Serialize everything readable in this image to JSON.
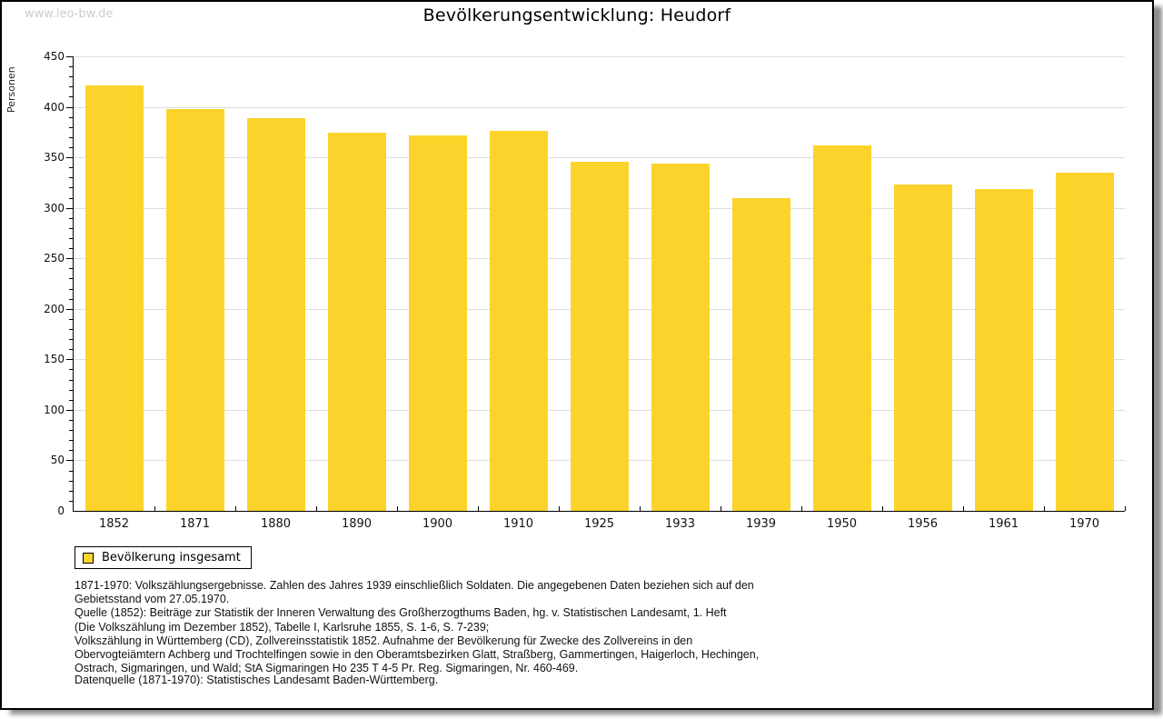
{
  "watermark": "www.leo-bw.de",
  "header": {
    "title": "Bevölkerungsentwicklung: Heudorf"
  },
  "legend": {
    "series_label": "Bevölkerung insgesamt",
    "swatch_color": "#FCD32B"
  },
  "chart_data": {
    "type": "bar",
    "title": "Bevölkerungsentwicklung: Heudorf",
    "xlabel": "",
    "ylabel": "Personen",
    "categories": [
      "1852",
      "1871",
      "1880",
      "1890",
      "1900",
      "1910",
      "1925",
      "1933",
      "1939",
      "1950",
      "1956",
      "1961",
      "1970"
    ],
    "values": [
      421,
      398,
      389,
      374,
      372,
      376,
      346,
      344,
      310,
      362,
      323,
      319,
      335
    ],
    "series_name": "Bevölkerung insgesamt",
    "ylim": [
      0,
      450
    ],
    "ytick_step": 50,
    "minor_tick_step": 10,
    "grid": "horizontal-major",
    "gridline_color": "#dddddd",
    "bar_color": "#FCD32B",
    "legend_position": "bottom-left"
  },
  "footer": {
    "lines": [
      "1871-1970: Volkszählungsergebnisse. Zahlen des Jahres 1939 einschließlich Soldaten. Die angegebenen Daten beziehen sich auf den",
      "Gebietsstand vom 27.05.1970.",
      "Quelle (1852): Beiträge zur Statistik der Inneren Verwaltung des Großherzogthums Baden, hg. v. Statistischen Landesamt, 1. Heft",
      "(Die Volkszählung im Dezember 1852), Tabelle I, Karlsruhe 1855, S. 1-6, S. 7-239;",
      "Volkszählung in Württemberg (CD), Zollvereinsstatistik 1852. Aufnahme der Bevölkerung für Zwecke des Zollvereins in den",
      "Obervogteiämtern Achberg und Trochtelfingen sowie in den Oberamtsbezirken Glatt, Straßberg, Gammertingen, Haigerloch, Hechingen,",
      "Ostrach, Sigmaringen, und Wald; StA Sigmaringen Ho 235 T 4-5 Pr. Reg. Sigmaringen, Nr. 460-469."
    ],
    "datasource": "Datenquelle (1871-1970): Statistisches Landesamt Baden-Württemberg."
  }
}
